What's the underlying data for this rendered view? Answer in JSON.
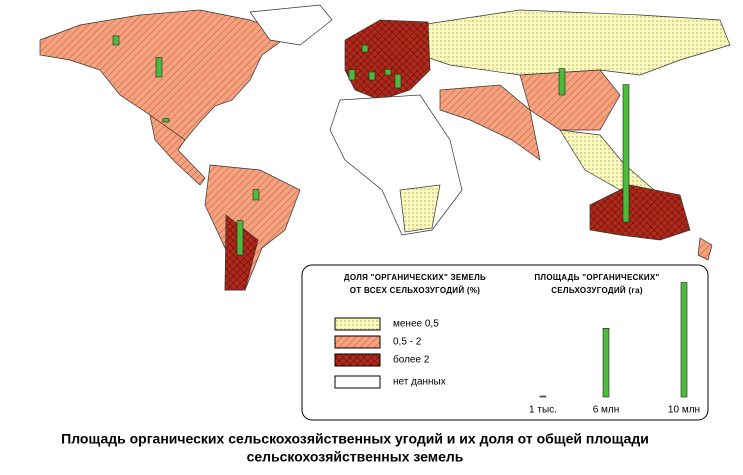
{
  "map": {
    "title_lines": [
      "Площадь органических сельскохозяйственных угодий и их доля от общей площади",
      "сельскохозяйственных земель"
    ],
    "legend": {
      "share_title_lines": [
        "ДОЛЯ \"ОРГАНИЧЕСКИХ\" ЗЕМЕЛЬ",
        "ОТ ВСЕХ СЕЛЬХОЗУГОДИЙ (%)"
      ],
      "share_items": [
        "менее 0,5",
        "0,5 - 2",
        "более 2",
        "нет данных"
      ],
      "area_title_lines": [
        "ПЛОЩАДЬ \"ОРГАНИЧЕСКИХ\"",
        "СЕЛЬХОЗУГОДИЙ (га)"
      ],
      "area_bars": [
        {
          "value": 0.001,
          "label": "1 тыс."
        },
        {
          "value": 6,
          "label": "6 млн"
        },
        {
          "value": 10,
          "label": "10 млн"
        }
      ],
      "bar_color": "#4cbb3c"
    },
    "bars": [
      12,
      2.3,
      3,
      1.7,
      0.8,
      0.9,
      0.9,
      0.7,
      1.2,
      0.5,
      0.6,
      0.3
    ]
  }
}
